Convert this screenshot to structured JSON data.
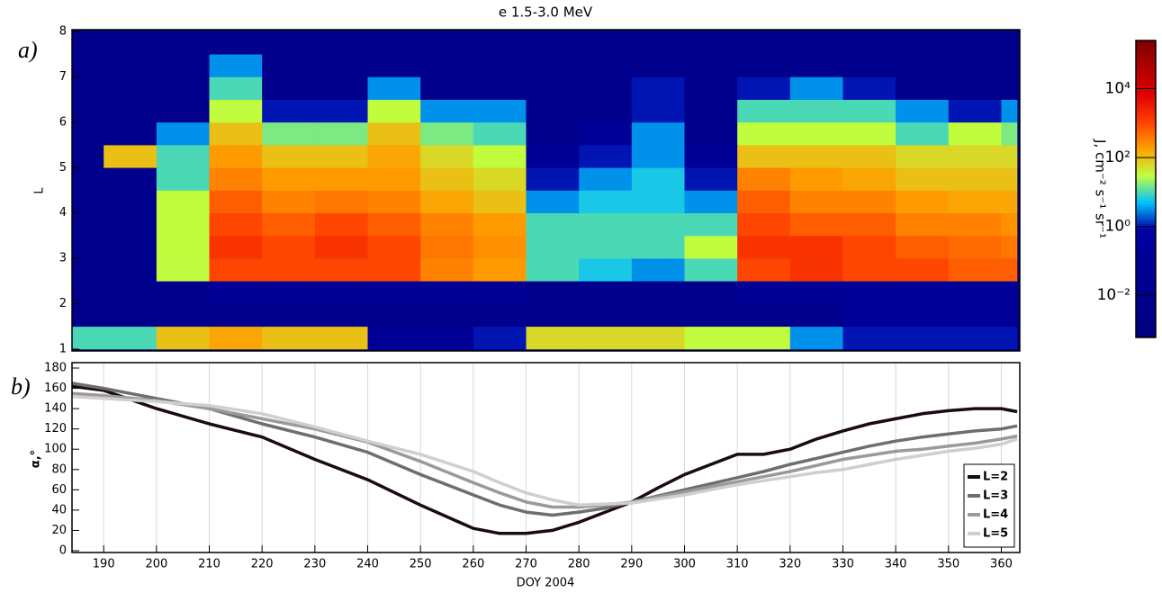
{
  "chart_data": [
    {
      "type": "heatmap",
      "title": "e 1.5-3.0 MeV",
      "panel_label": "a)",
      "ylabel": "L",
      "x_edges": [
        184,
        190,
        200,
        210,
        220,
        230,
        240,
        250,
        260,
        270,
        280,
        290,
        300,
        310,
        320,
        330,
        340,
        350,
        360,
        363
      ],
      "y_edges": [
        1,
        1.5,
        2,
        2.5,
        3,
        3.5,
        4,
        4.5,
        5,
        5.5,
        6,
        6.5,
        7,
        7.5,
        8
      ],
      "z": [
        [
          10,
          10,
          100,
          160,
          100,
          100,
          0.1,
          0.1,
          1,
          63,
          63,
          63,
          32,
          32,
          3.2,
          1,
          1,
          1,
          1
        ],
        [
          0.01,
          0.01,
          0.01,
          0.01,
          0.01,
          0.01,
          0.01,
          0.01,
          0.01,
          0.01,
          0.01,
          0.01,
          0.01,
          0.01,
          0.01,
          0.1,
          0.1,
          0.1,
          0.1
        ],
        [
          0.01,
          0.01,
          0.01,
          0.1,
          0.1,
          0.1,
          0.1,
          0.1,
          0.1,
          0.01,
          0.01,
          0.01,
          0.01,
          0.1,
          0.1,
          0.1,
          0.1,
          0.1,
          0.1
        ],
        [
          0.01,
          0.01,
          32,
          1000,
          1000,
          1000,
          1000,
          320,
          200,
          10,
          6.3,
          3.2,
          10,
          1000,
          1600,
          1000,
          1000,
          630,
          630
        ],
        [
          0.01,
          0.01,
          32,
          1600,
          1000,
          1600,
          1000,
          400,
          250,
          10,
          10,
          10,
          32,
          1600,
          1600,
          1000,
          630,
          500,
          400
        ],
        [
          0.01,
          0.01,
          32,
          1000,
          630,
          1000,
          630,
          320,
          200,
          10,
          10,
          10,
          10,
          1000,
          630,
          630,
          320,
          320,
          250
        ],
        [
          0.01,
          0.01,
          32,
          630,
          320,
          400,
          320,
          160,
          100,
          3.2,
          6.3,
          6.3,
          3.2,
          630,
          320,
          320,
          200,
          160,
          160
        ],
        [
          0.01,
          0.01,
          10,
          320,
          200,
          200,
          200,
          100,
          63,
          1,
          3.2,
          6.3,
          1,
          320,
          200,
          160,
          100,
          100,
          100
        ],
        [
          0.01,
          100,
          10,
          200,
          100,
          100,
          160,
          63,
          32,
          0.1,
          1,
          3.2,
          0.1,
          100,
          100,
          100,
          63,
          63,
          63
        ],
        [
          0.01,
          0.01,
          3.2,
          100,
          16,
          16,
          100,
          16,
          10,
          0.01,
          0.1,
          3.2,
          0.01,
          32,
          32,
          32,
          10,
          32,
          16
        ],
        [
          0.01,
          0.01,
          0.01,
          32,
          1,
          1,
          32,
          3.2,
          3.2,
          0.01,
          0.01,
          1,
          0.01,
          10,
          10,
          10,
          3.2,
          1,
          3.2
        ],
        [
          0.01,
          0.01,
          0.01,
          10,
          0.01,
          0.01,
          3.2,
          0.01,
          0.01,
          0.01,
          0.01,
          1,
          0.01,
          1,
          3.2,
          1,
          0.01,
          0.01,
          0.01
        ],
        [
          0.01,
          0.01,
          0.01,
          3.2,
          0.01,
          0.01,
          0.01,
          0.01,
          0.01,
          0.01,
          0.01,
          0.01,
          0.01,
          0.01,
          0.01,
          0.01,
          0.01,
          0.01,
          0.01
        ],
        [
          0.01,
          0.01,
          0.01,
          0.01,
          0.01,
          0.01,
          0.01,
          0.01,
          0.01,
          0.01,
          0.01,
          0.01,
          0.01,
          0.01,
          0.01,
          0.01,
          0.01,
          0.01,
          0.01
        ]
      ],
      "xlim": [
        184,
        363.5
      ],
      "ylim": [
        1,
        8
      ],
      "yticks": [
        1,
        2,
        3,
        4,
        5,
        6,
        7,
        8
      ],
      "colorbar": {
        "label": "J,  cm⁻² s⁻¹ sr⁻¹",
        "scale": "log",
        "zlim": [
          0.0006,
          250000
        ],
        "ticks": [
          {
            "value": 0.01,
            "label": "10⁻²"
          },
          {
            "value": 1,
            "label": "10⁰"
          },
          {
            "value": 100,
            "label": "10²"
          },
          {
            "value": 10000,
            "label": "10⁴"
          }
        ],
        "colormap": [
          "#000080",
          "#000088",
          "#000090",
          "#000098",
          "#0000a8",
          "#00c0ff",
          "#c0ff40",
          "#ffa000",
          "#ff4000",
          "#e00000",
          "#b00000",
          "#800000"
        ]
      }
    },
    {
      "type": "line",
      "panel_label": "b)",
      "xlabel": "DOY 2004",
      "ylabel": "α,°",
      "x": [
        184,
        190,
        200,
        210,
        220,
        230,
        240,
        250,
        260,
        265,
        270,
        275,
        280,
        285,
        290,
        295,
        300,
        305,
        310,
        315,
        320,
        325,
        330,
        335,
        340,
        345,
        350,
        355,
        360,
        363
      ],
      "series": [
        {
          "name": "L=2",
          "color": "#1a0a14",
          "values": [
            162,
            158,
            140,
            125,
            112,
            90,
            70,
            45,
            22,
            17,
            17,
            20,
            28,
            38,
            48,
            62,
            75,
            85,
            95,
            95,
            100,
            110,
            118,
            125,
            130,
            135,
            138,
            140,
            140,
            137
          ]
        },
        {
          "name": "L=3",
          "color": "#6e6e6e",
          "values": [
            165,
            160,
            150,
            140,
            125,
            112,
            97,
            75,
            55,
            45,
            38,
            35,
            38,
            42,
            48,
            54,
            60,
            66,
            72,
            78,
            85,
            91,
            97,
            103,
            108,
            112,
            115,
            118,
            120,
            123
          ]
        },
        {
          "name": "L=4",
          "color": "#9a9a9a",
          "values": [
            155,
            153,
            148,
            140,
            130,
            120,
            107,
            88,
            67,
            57,
            48,
            43,
            43,
            45,
            48,
            53,
            58,
            63,
            68,
            73,
            78,
            84,
            90,
            94,
            98,
            100,
            103,
            106,
            110,
            113
          ]
        },
        {
          "name": "L=5",
          "color": "#cfcfcf",
          "values": [
            152,
            150,
            147,
            143,
            135,
            122,
            108,
            95,
            78,
            67,
            57,
            50,
            45,
            46,
            47,
            51,
            55,
            60,
            65,
            69,
            73,
            77,
            80,
            85,
            90,
            94,
            98,
            101,
            105,
            110
          ]
        }
      ],
      "xlim": [
        184,
        363.5
      ],
      "ylim": [
        0,
        180
      ],
      "xticks": [
        190,
        200,
        210,
        220,
        230,
        240,
        250,
        260,
        270,
        280,
        290,
        300,
        310,
        320,
        330,
        340,
        350,
        360
      ],
      "yticks": [
        0,
        20,
        40,
        60,
        80,
        100,
        120,
        140,
        160,
        180
      ],
      "grid": true,
      "legend": "lower right"
    }
  ]
}
